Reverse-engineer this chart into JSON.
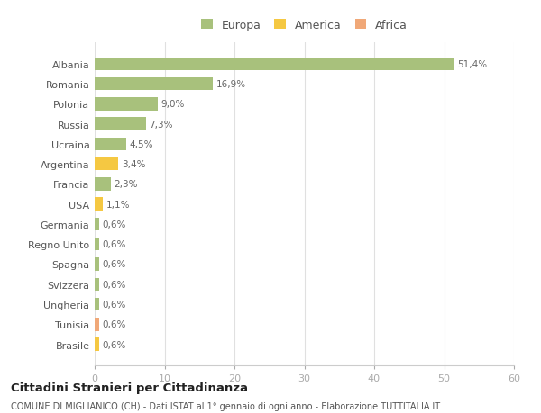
{
  "countries": [
    "Albania",
    "Romania",
    "Polonia",
    "Russia",
    "Ucraina",
    "Argentina",
    "Francia",
    "USA",
    "Germania",
    "Regno Unito",
    "Spagna",
    "Svizzera",
    "Ungheria",
    "Tunisia",
    "Brasile"
  ],
  "values": [
    51.4,
    16.9,
    9.0,
    7.3,
    4.5,
    3.4,
    2.3,
    1.1,
    0.6,
    0.6,
    0.6,
    0.6,
    0.6,
    0.6,
    0.6
  ],
  "labels": [
    "51,4%",
    "16,9%",
    "9,0%",
    "7,3%",
    "4,5%",
    "3,4%",
    "2,3%",
    "1,1%",
    "0,6%",
    "0,6%",
    "0,6%",
    "0,6%",
    "0,6%",
    "0,6%",
    "0,6%"
  ],
  "colors": [
    "#a8c17c",
    "#a8c17c",
    "#a8c17c",
    "#a8c17c",
    "#a8c17c",
    "#f5c842",
    "#a8c17c",
    "#f5c842",
    "#a8c17c",
    "#a8c17c",
    "#a8c17c",
    "#a8c17c",
    "#a8c17c",
    "#f0a878",
    "#f5c842"
  ],
  "legend_labels": [
    "Europa",
    "America",
    "Africa"
  ],
  "legend_colors": [
    "#a8c17c",
    "#f5c842",
    "#f0a878"
  ],
  "title": "Cittadini Stranieri per Cittadinanza",
  "subtitle": "COMUNE DI MIGLIANICO (CH) - Dati ISTAT al 1° gennaio di ogni anno - Elaborazione TUTTITALIA.IT",
  "xlim": [
    0,
    60
  ],
  "xticks": [
    0,
    10,
    20,
    30,
    40,
    50,
    60
  ],
  "background_color": "#ffffff",
  "grid_color": "#e0e0e0"
}
